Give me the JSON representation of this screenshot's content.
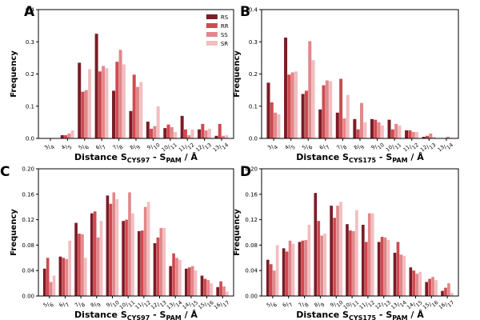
{
  "colors": {
    "RS": "#7b1c26",
    "RR": "#cf4a4f",
    "SS": "#e2878a",
    "SR": "#f2bdc0",
    "axis": "#000000",
    "border": "#000000"
  },
  "chart_data": [
    {
      "panel_letter": "A",
      "type": "bar",
      "xlabel_main": "Distance S",
      "xlabel_sub1": "CYS97",
      "xlabel_mid": " - S",
      "xlabel_sub2": "PAM",
      "xlabel_unit": " / Å",
      "ylabel": "Frequency",
      "ylim": [
        0,
        0.4
      ],
      "yticks": [
        "0.0",
        "0.1",
        "0.2",
        "0.3",
        "0.4"
      ],
      "categories": [
        [
          "3",
          "4"
        ],
        [
          "4",
          "5"
        ],
        [
          "5",
          "6"
        ],
        [
          "6",
          "7"
        ],
        [
          "7",
          "8"
        ],
        [
          "8",
          "9"
        ],
        [
          "9",
          "10"
        ],
        [
          "10",
          "11"
        ],
        [
          "11",
          "12"
        ],
        [
          "12",
          "13"
        ],
        [
          "13",
          "14"
        ]
      ],
      "legend": [
        "RS",
        "RR",
        "SS",
        "SR"
      ],
      "series": [
        {
          "name": "RS",
          "values": [
            0,
            0.01,
            0.235,
            0.325,
            0.148,
            0.085,
            0.052,
            0.032,
            0.07,
            0.028,
            0.008
          ]
        },
        {
          "name": "RR",
          "values": [
            0,
            0.01,
            0.145,
            0.208,
            0.238,
            0.198,
            0.03,
            0.043,
            0.028,
            0.045,
            0.045
          ]
        },
        {
          "name": "SS",
          "values": [
            0,
            0.015,
            0.15,
            0.225,
            0.275,
            0.16,
            0.038,
            0.035,
            0.01,
            0.025,
            0.008
          ]
        },
        {
          "name": "SR",
          "values": [
            0,
            0.025,
            0.215,
            0.218,
            0.23,
            0.175,
            0.1,
            0.02,
            0.028,
            0.03,
            0.01
          ]
        }
      ]
    },
    {
      "panel_letter": "B",
      "type": "bar",
      "xlabel_main": "Distance S",
      "xlabel_sub1": "CYS175",
      "xlabel_mid": " - S",
      "xlabel_sub2": "PAM",
      "xlabel_unit": " / Å",
      "ylabel": "Frequency",
      "ylim": [
        0,
        0.4
      ],
      "yticks": [
        "0.0",
        "0.1",
        "0.2",
        "0.3",
        "0.4"
      ],
      "categories": [
        [
          "3",
          "4"
        ],
        [
          "4",
          "5"
        ],
        [
          "5",
          "6"
        ],
        [
          "6",
          "7"
        ],
        [
          "7",
          "8"
        ],
        [
          "8",
          "9"
        ],
        [
          "9",
          "10"
        ],
        [
          "10",
          "11"
        ],
        [
          "11",
          "12"
        ],
        [
          "12",
          "13"
        ],
        [
          "13",
          "14"
        ]
      ],
      "legend": [],
      "series": [
        {
          "name": "RS",
          "values": [
            0.173,
            0.313,
            0.138,
            0.09,
            0.08,
            0.06,
            0.06,
            0.058,
            0.025,
            0.005,
            0.0
          ]
        },
        {
          "name": "RR",
          "values": [
            0.112,
            0.198,
            0.148,
            0.165,
            0.185,
            0.028,
            0.058,
            0.028,
            0.025,
            0.008,
            0.0
          ]
        },
        {
          "name": "SS",
          "values": [
            0.08,
            0.205,
            0.302,
            0.18,
            0.062,
            0.11,
            0.05,
            0.045,
            0.02,
            0.015,
            0.005
          ]
        },
        {
          "name": "SR",
          "values": [
            0.075,
            0.208,
            0.243,
            0.178,
            0.135,
            0.05,
            0.04,
            0.04,
            0.02,
            0.005,
            0.002
          ]
        }
      ]
    },
    {
      "panel_letter": "C",
      "type": "bar",
      "xlabel_main": "Distance S",
      "xlabel_sub1": "CYS97",
      "xlabel_mid": " - S",
      "xlabel_sub2": "PAM",
      "xlabel_unit": " / Å",
      "ylabel": "Frequency",
      "ylim": [
        0,
        0.2
      ],
      "yticks": [
        "0.00",
        "0.04",
        "0.08",
        "0.12",
        "0.16",
        "0.20"
      ],
      "categories": [
        [
          "5",
          "6"
        ],
        [
          "6",
          "7"
        ],
        [
          "7",
          "8"
        ],
        [
          "8",
          "9"
        ],
        [
          "9",
          "10"
        ],
        [
          "10",
          "11"
        ],
        [
          "11",
          "12"
        ],
        [
          "12",
          "13"
        ],
        [
          "13",
          "14"
        ],
        [
          "14",
          "15"
        ],
        [
          "15",
          "16"
        ],
        [
          "16",
          "17"
        ]
      ],
      "legend": [],
      "series": [
        {
          "name": "RS",
          "values": [
            0.043,
            0.062,
            0.115,
            0.13,
            0.158,
            0.118,
            0.102,
            0.083,
            0.047,
            0.043,
            0.032,
            0.014
          ]
        },
        {
          "name": "RR",
          "values": [
            0.06,
            0.06,
            0.098,
            0.133,
            0.145,
            0.12,
            0.103,
            0.092,
            0.067,
            0.045,
            0.027,
            0.023
          ]
        },
        {
          "name": "SS",
          "values": [
            0.022,
            0.058,
            0.097,
            0.092,
            0.163,
            0.163,
            0.14,
            0.107,
            0.06,
            0.047,
            0.025,
            0.015
          ]
        },
        {
          "name": "SR",
          "values": [
            0.032,
            0.087,
            0.06,
            0.118,
            0.152,
            0.13,
            0.148,
            0.107,
            0.057,
            0.04,
            0.02,
            0.007
          ]
        }
      ]
    },
    {
      "panel_letter": "D",
      "type": "bar",
      "xlabel_main": "Distance S",
      "xlabel_sub1": "CYS175",
      "xlabel_mid": " - S",
      "xlabel_sub2": "PAM",
      "xlabel_unit": " / Å",
      "ylabel": "Frequency",
      "ylim": [
        0,
        0.2
      ],
      "yticks": [
        "0.00",
        "0.04",
        "0.08",
        "0.12",
        "0.16",
        "0.20"
      ],
      "categories": [
        [
          "5",
          "6"
        ],
        [
          "6",
          "7"
        ],
        [
          "7",
          "8"
        ],
        [
          "8",
          "9"
        ],
        [
          "9",
          "10"
        ],
        [
          "10",
          "11"
        ],
        [
          "11",
          "12"
        ],
        [
          "12",
          "13"
        ],
        [
          "13",
          "14"
        ],
        [
          "14",
          "15"
        ],
        [
          "15",
          "16"
        ],
        [
          "16",
          "17"
        ]
      ],
      "legend": [],
      "series": [
        {
          "name": "RS",
          "values": [
            0.057,
            0.075,
            0.085,
            0.162,
            0.142,
            0.113,
            0.112,
            0.085,
            0.068,
            0.045,
            0.022,
            0.008
          ]
        },
        {
          "name": "RR",
          "values": [
            0.05,
            0.07,
            0.087,
            0.118,
            0.123,
            0.103,
            0.085,
            0.093,
            0.085,
            0.04,
            0.027,
            0.013
          ]
        },
        {
          "name": "SS",
          "values": [
            0.04,
            0.087,
            0.088,
            0.095,
            0.142,
            0.102,
            0.13,
            0.092,
            0.065,
            0.035,
            0.03,
            0.02
          ]
        },
        {
          "name": "SR",
          "values": [
            0.08,
            0.082,
            0.112,
            0.098,
            0.148,
            0.135,
            0.13,
            0.088,
            0.063,
            0.038,
            0.025,
            0.005
          ]
        }
      ]
    }
  ]
}
